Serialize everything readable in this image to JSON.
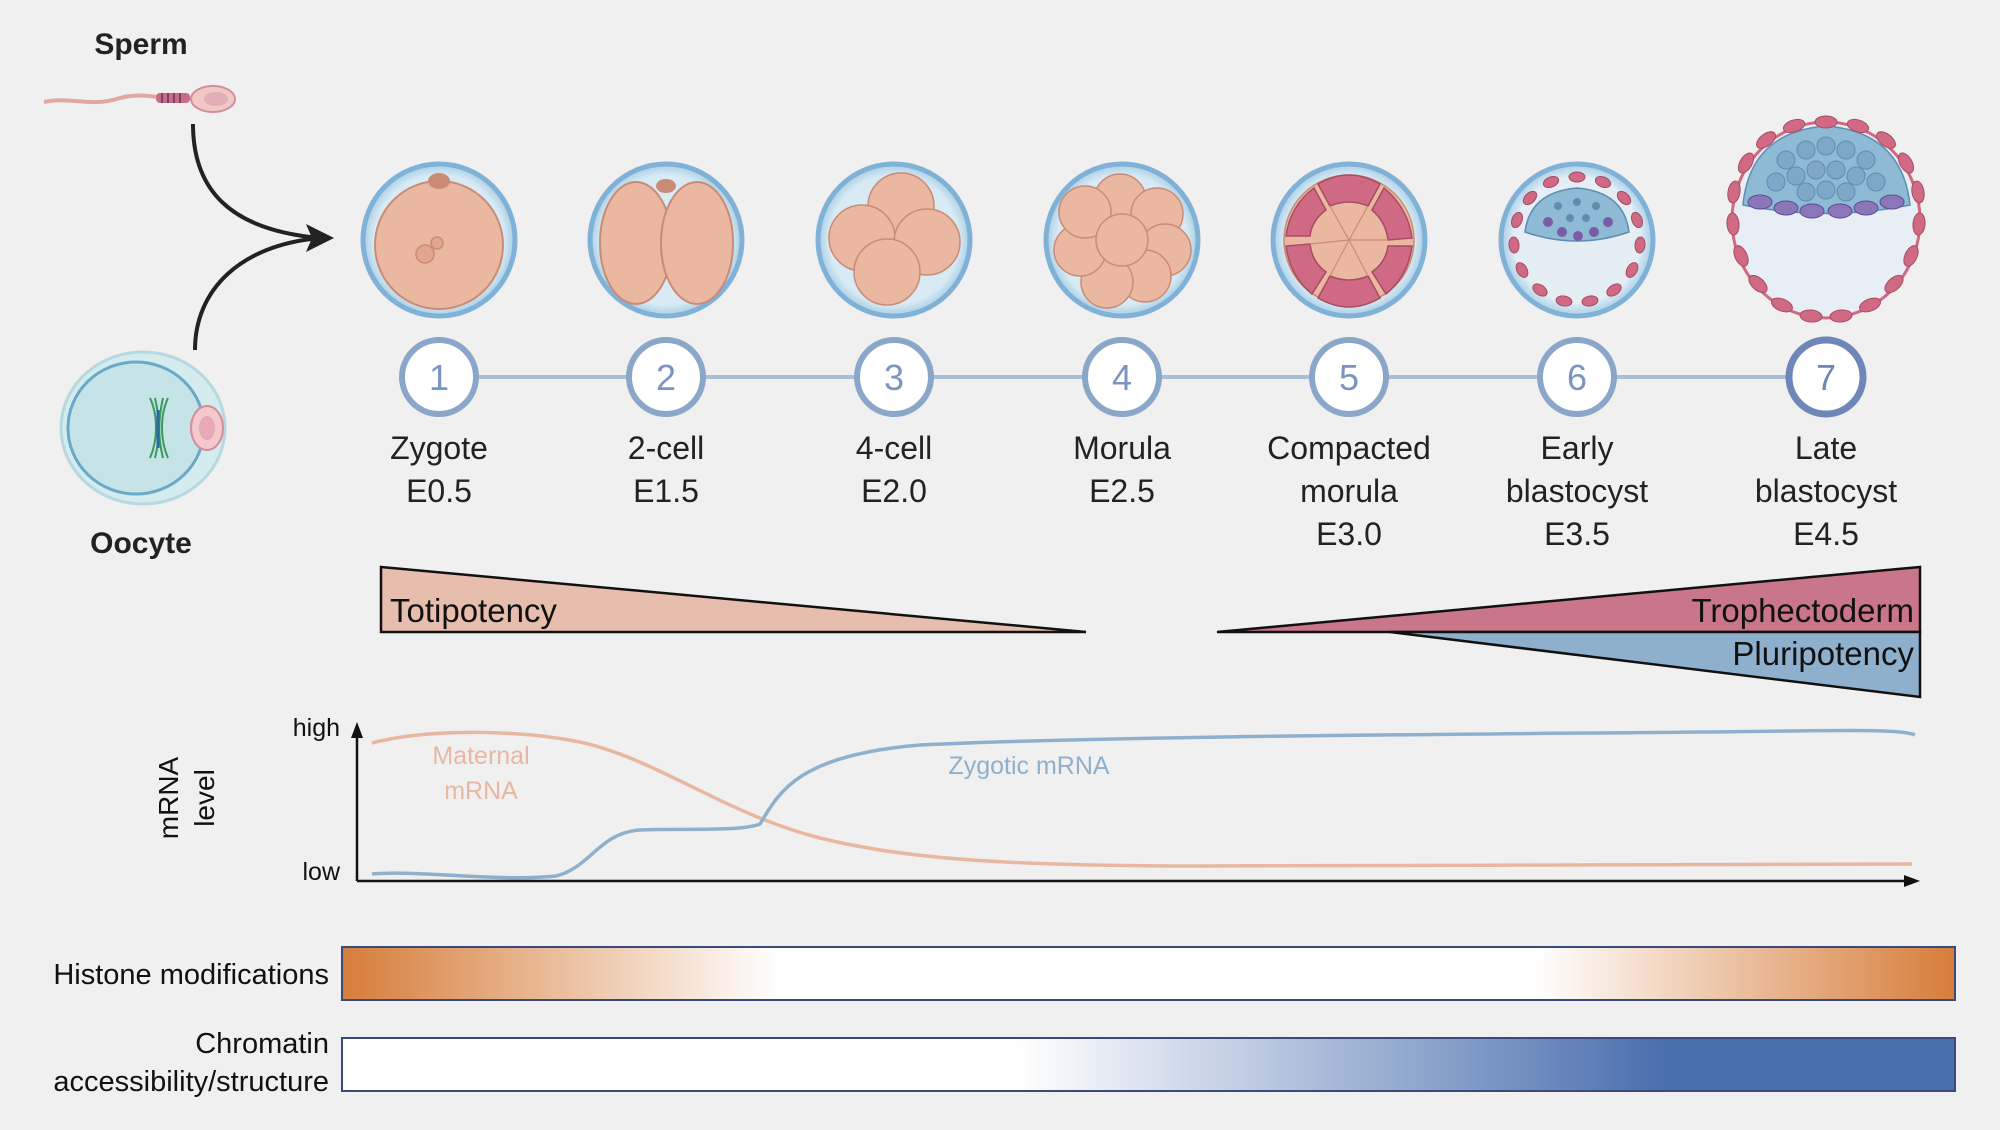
{
  "gametes": {
    "sperm_label": "Sperm",
    "oocyte_label": "Oocyte"
  },
  "stages": [
    {
      "number": "1",
      "name": "Zygote",
      "day": "E0.5"
    },
    {
      "number": "2",
      "name": "2-cell",
      "day": "E1.5"
    },
    {
      "number": "3",
      "name": "4-cell",
      "day": "E2.0"
    },
    {
      "number": "4",
      "name": "Morula",
      "day": "E2.5"
    },
    {
      "number": "5",
      "name_line1": "Compacted",
      "name_line2": "morula",
      "day": "E3.0"
    },
    {
      "number": "6",
      "name_line1": "Early",
      "name_line2": "blastocyst",
      "day": "E3.5"
    },
    {
      "number": "7",
      "name_line1": "Late",
      "name_line2": "blastocyst",
      "day": "E4.5"
    }
  ],
  "potency": {
    "totipotency": "Totipotency",
    "trophectoderm": "Trophectoderm",
    "pluripotency": "Pluripotency"
  },
  "mrna_chart": {
    "ylabel_line1": "mRNA",
    "ylabel_line2": "level",
    "tick_high": "high",
    "tick_low": "low",
    "maternal_line1": "Maternal",
    "maternal_line2": "mRNA",
    "zygotic": "Zygotic mRNA"
  },
  "bars": {
    "histone": "Histone modifications",
    "chromatin_line1": "Chromatin",
    "chromatin_line2": "accessibility/structure"
  },
  "colors": {
    "background": "#f0f0f0",
    "zona": "#8fb8d8",
    "blastomere": "#eab7a0",
    "trophectoderm": "#d06a84",
    "icm": "#7fa8c8",
    "stage_circle": "#7b95c0",
    "totipotency": "#e7beae",
    "trophectoderm_wedge": "#c9768a",
    "pluripotency_wedge": "#8fb0cc",
    "maternal_curve": "#e8b7a2",
    "zygotic_curve": "#8fb0cc",
    "histone_gradient": "#d67d3a",
    "chromatin_gradient": "#4a6fae"
  }
}
